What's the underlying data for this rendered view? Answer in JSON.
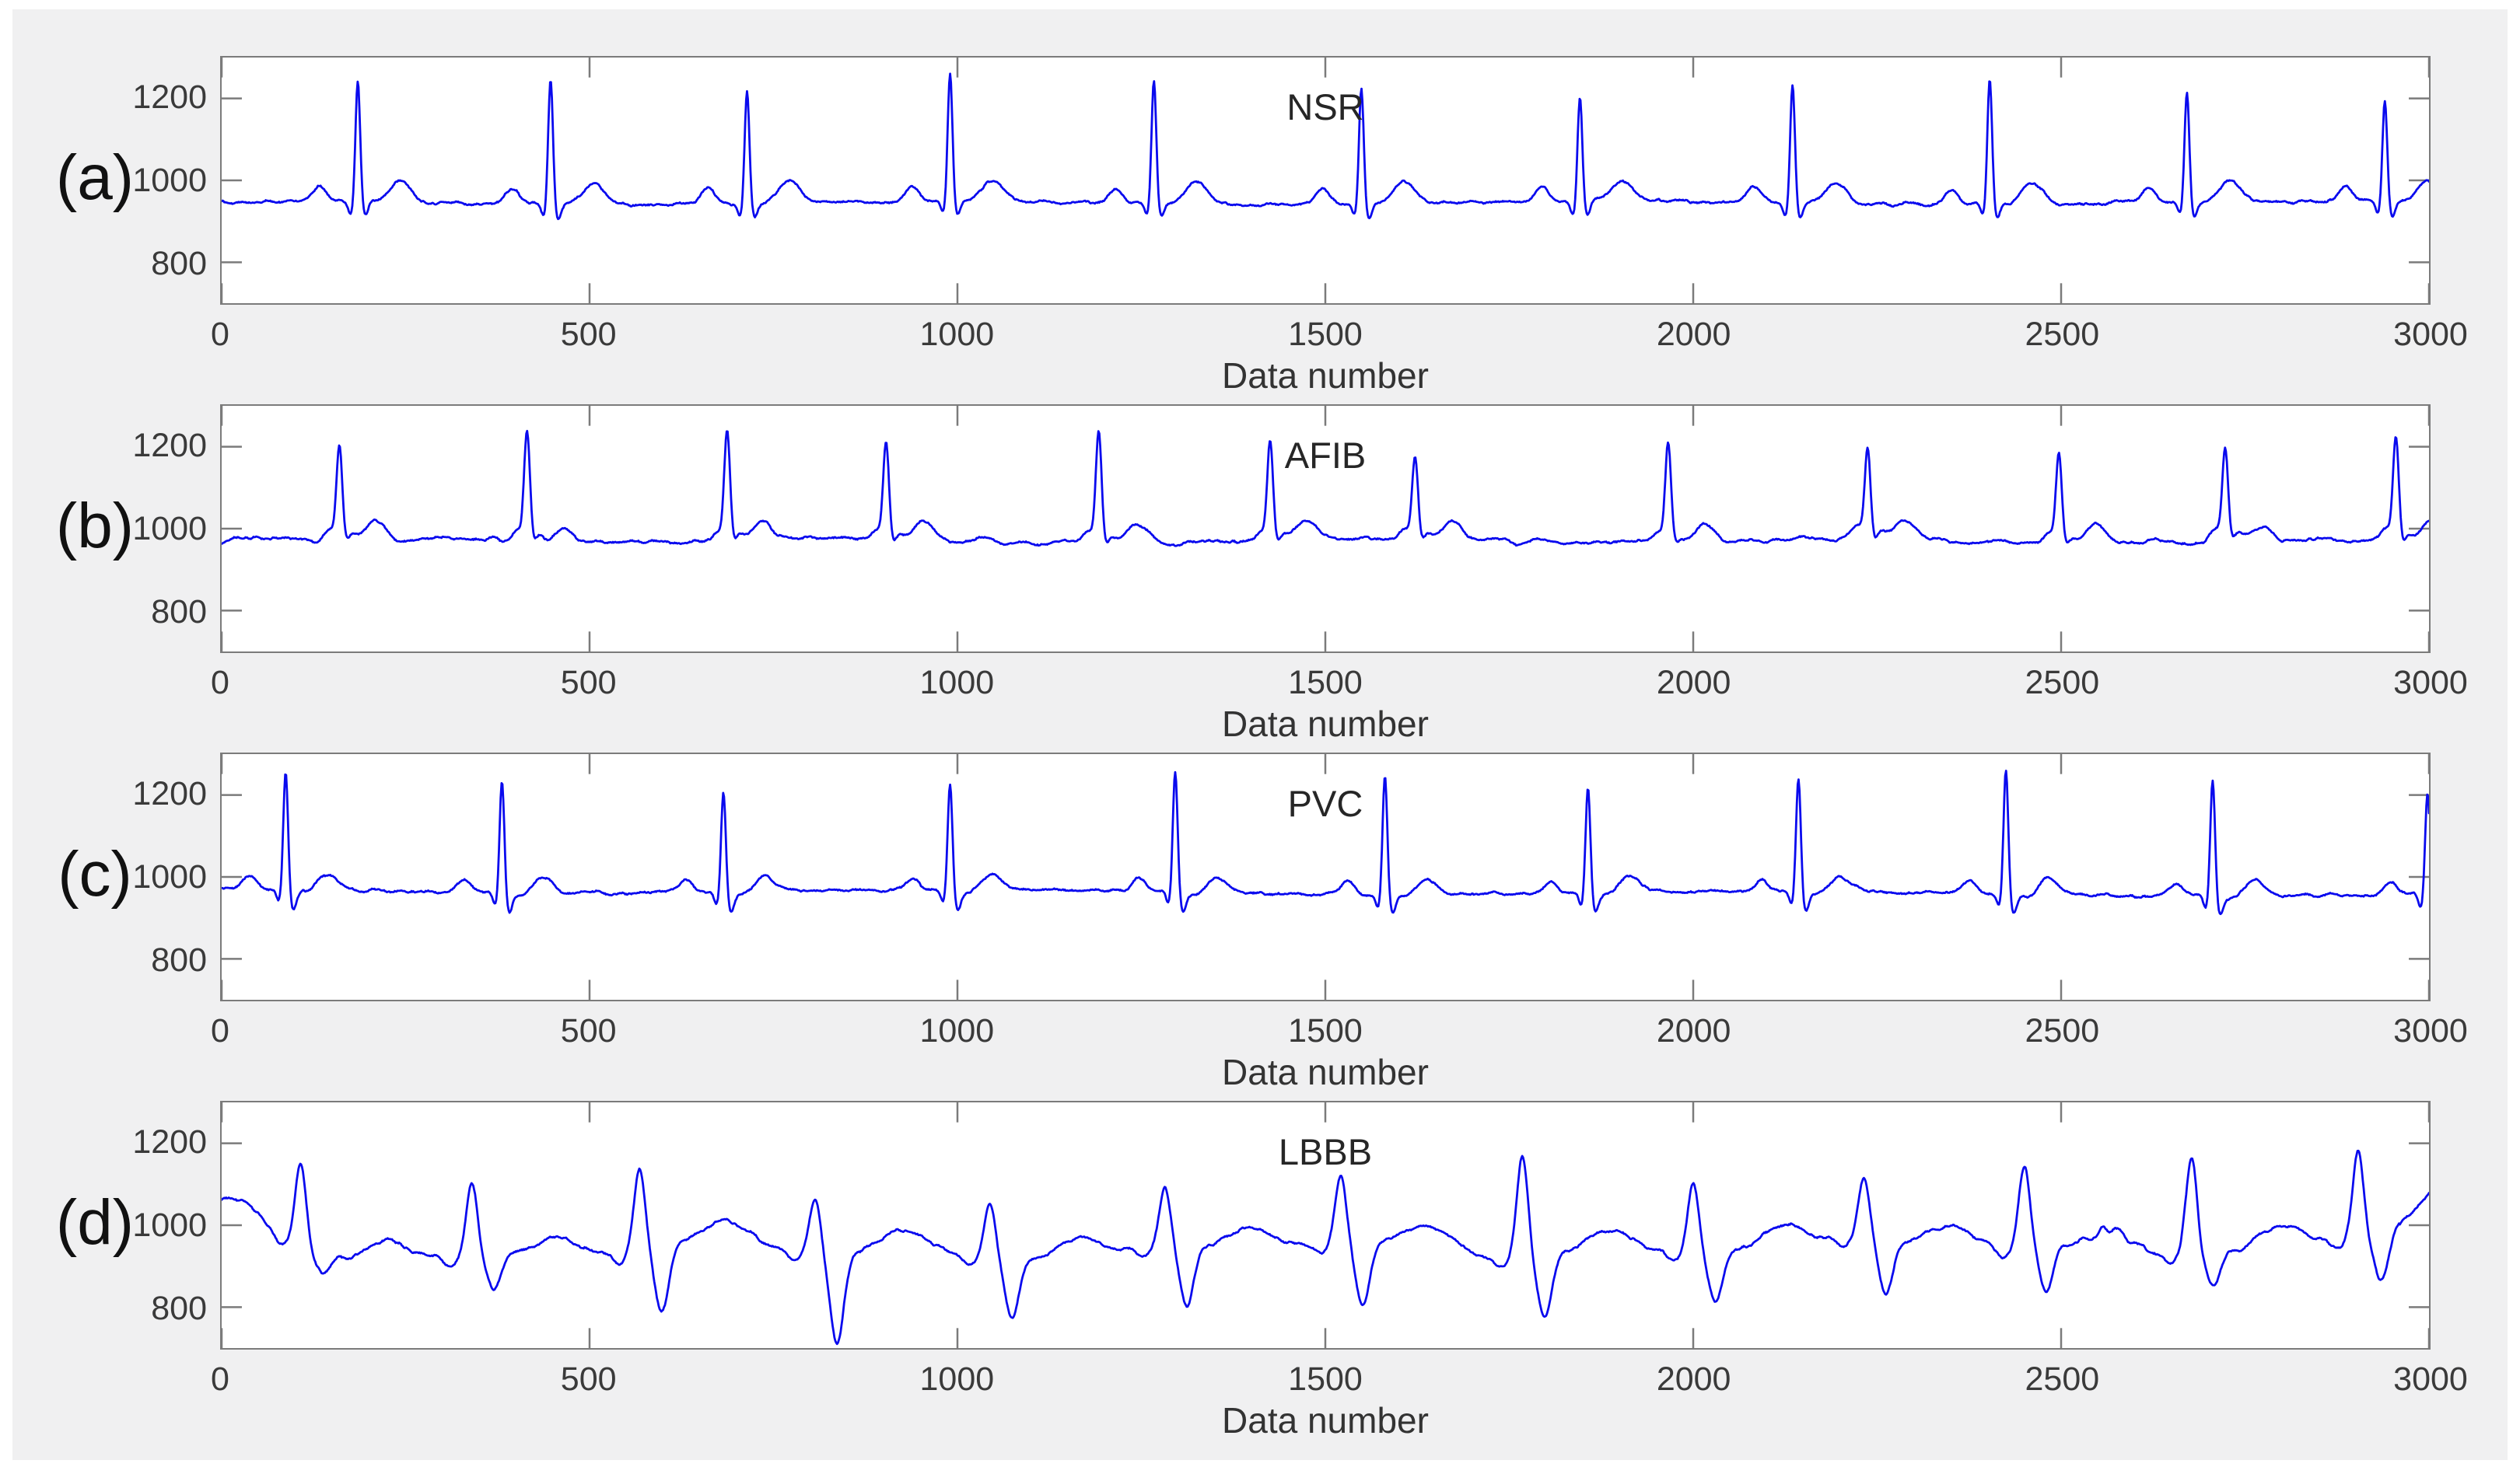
{
  "figure": {
    "page_background": "#ffffff",
    "background": "#f0f0f1",
    "line_color": "#0a0aee",
    "axis_color": "#7b7b7b",
    "tick_text_color": "#3a3a3a",
    "panel_letter_color": "#111111"
  },
  "chart_data": {
    "type": "line",
    "xlabel": "Data number",
    "xlim": [
      0,
      3000
    ],
    "ylim": [
      700,
      1300
    ],
    "x_ticks": [
      0,
      500,
      1000,
      1500,
      2000,
      2500,
      3000
    ],
    "y_ticks": [
      1200,
      1000,
      800
    ],
    "grid": false,
    "legend": "none",
    "panels": [
      {
        "label": "(a)",
        "title": "NSR",
        "morphology": "nsr",
        "baseline": 945,
        "noise": 4,
        "seed": 11,
        "wander": [
          [
            4,
            900,
            1.0
          ]
        ],
        "drift": 0,
        "wave": {
          "p": [
            38,
            -52,
            13
          ],
          "q": [
            -30,
            -9,
            5
          ],
          "r_w": 4.5,
          "s": [
            -36,
            10,
            5.5
          ],
          "t": [
            52,
            58,
            20
          ]
        },
        "r_peaks": [
          [
            185,
            1243
          ],
          [
            447,
            1247
          ],
          [
            714,
            1217
          ],
          [
            990,
            1258
          ],
          [
            1267,
            1243
          ],
          [
            1549,
            1228
          ],
          [
            1846,
            1206
          ],
          [
            2135,
            1237
          ],
          [
            2403,
            1245
          ],
          [
            2671,
            1214
          ],
          [
            2940,
            1198
          ]
        ]
      },
      {
        "label": "(b)",
        "title": "AFIB",
        "morphology": "afib",
        "baseline": 972,
        "noise": 4.5,
        "fib_amp": 7,
        "seed": 22,
        "wander": [
          [
            5,
            700,
            0.4
          ]
        ],
        "drift": 0,
        "wave": {
          "foot1": [
            24,
            -13,
            10
          ],
          "foot2": [
            20,
            13,
            10
          ],
          "r_w": 5.5,
          "s": [
            -20,
            10,
            6
          ],
          "t": [
            40,
            50,
            18
          ]
        },
        "r_peaks": [
          [
            160,
            1205
          ],
          [
            415,
            1222
          ],
          [
            687,
            1237
          ],
          [
            903,
            1212
          ],
          [
            1192,
            1231
          ],
          [
            1425,
            1210
          ],
          [
            1622,
            1171
          ],
          [
            1966,
            1203
          ],
          [
            2237,
            1195
          ],
          [
            2497,
            1177
          ],
          [
            2723,
            1186
          ],
          [
            2955,
            1221
          ]
        ]
      },
      {
        "label": "(c)",
        "title": "PVC",
        "morphology": "pvc",
        "baseline": 968,
        "noise": 4,
        "seed": 33,
        "wander": [
          [
            5,
            1100,
            2.0
          ]
        ],
        "drift": -10,
        "wave": {
          "p": [
            30,
            -50,
            12
          ],
          "q": [
            -32,
            -9,
            5
          ],
          "r_w": 4.5,
          "s": [
            -45,
            10,
            6
          ],
          "t": [
            42,
            55,
            19
          ],
          "st": [
            -12,
            33,
            22
          ]
        },
        "r_peaks": [
          [
            87,
            1260
          ],
          [
            381,
            1242
          ],
          [
            682,
            1213
          ],
          [
            990,
            1228
          ],
          [
            1296,
            1263
          ],
          [
            1581,
            1250
          ],
          [
            1857,
            1222
          ],
          [
            2143,
            1244
          ],
          [
            2425,
            1266
          ],
          [
            2706,
            1235
          ],
          [
            2998,
            1209
          ]
        ]
      },
      {
        "label": "(d)",
        "title": "LBBB",
        "morphology": "lbbb",
        "baseline": 928,
        "noise": 5.5,
        "seed": 44,
        "wander": [
          [
            16,
            780,
            2.3
          ],
          [
            10,
            310,
            0.8
          ]
        ],
        "drift": 20,
        "start_bump": [
          120,
          15,
          60
        ],
        "end_bump": [
          92,
          3015,
          70
        ],
        "noisy_region": [
          2520,
          2960,
          9
        ],
        "wave": {
          "pre": [
            -22,
            -28,
            11
          ],
          "r_w": 10.5,
          "s_off": 30,
          "s_w": 13,
          "t": [
            52,
            118,
            42
          ]
        },
        "r_peaks": [
          [
            107,
            1148,
            884
          ],
          [
            340,
            1105,
            841
          ],
          [
            568,
            1139,
            791
          ],
          [
            806,
            1067,
            711
          ],
          [
            1044,
            1052,
            770
          ],
          [
            1282,
            1098,
            797
          ],
          [
            1521,
            1119,
            800
          ],
          [
            1768,
            1169,
            778
          ],
          [
            2000,
            1103,
            816
          ],
          [
            2232,
            1116,
            835
          ],
          [
            2450,
            1144,
            841
          ],
          [
            2677,
            1166,
            848
          ],
          [
            2904,
            1191,
            860
          ]
        ]
      }
    ]
  },
  "layout_note": ""
}
